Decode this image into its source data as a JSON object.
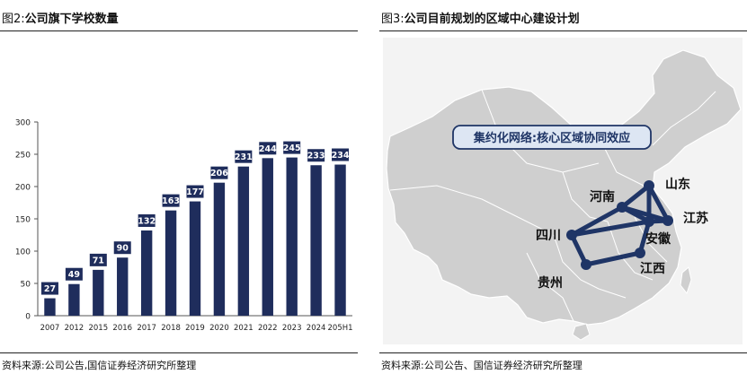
{
  "left": {
    "fig_label": "图2:",
    "title": "公司旗下学校数量",
    "source": "资料来源:公司公告,国信证券经济研究所整理"
  },
  "right": {
    "fig_label": "图3:",
    "title": "公司目前规划的区域中心建设计划",
    "source": "资料来源:公司公告、国信证券经济研究所整理",
    "map": {
      "banner": "集约化网络:核心区域协同效应",
      "labels": {
        "henan": "河南",
        "shandong": "山东",
        "jiangsu": "江苏",
        "anhui": "安徽",
        "sichuan": "四川",
        "jiangxi": "江西",
        "guizhou": "贵州"
      }
    }
  },
  "colors": {
    "bar": "#1f2d5c",
    "network": "#1f3566",
    "map_fill": "#cfcfcf",
    "map_stroke": "#ffffff",
    "banner_bg": "#dde6f3"
  },
  "chart_data": {
    "type": "bar",
    "categories": [
      "2007",
      "2012",
      "2015",
      "2016",
      "2017",
      "2018",
      "2019",
      "2020",
      "2021",
      "2022",
      "2023",
      "2024",
      "205H1"
    ],
    "values": [
      27,
      49,
      71,
      90,
      132,
      163,
      177,
      206,
      231,
      244,
      245,
      233,
      234
    ],
    "ylim": [
      0,
      300
    ],
    "yticks": [
      0,
      50,
      100,
      150,
      200,
      250,
      300
    ],
    "grid": false,
    "data_labels": true
  }
}
